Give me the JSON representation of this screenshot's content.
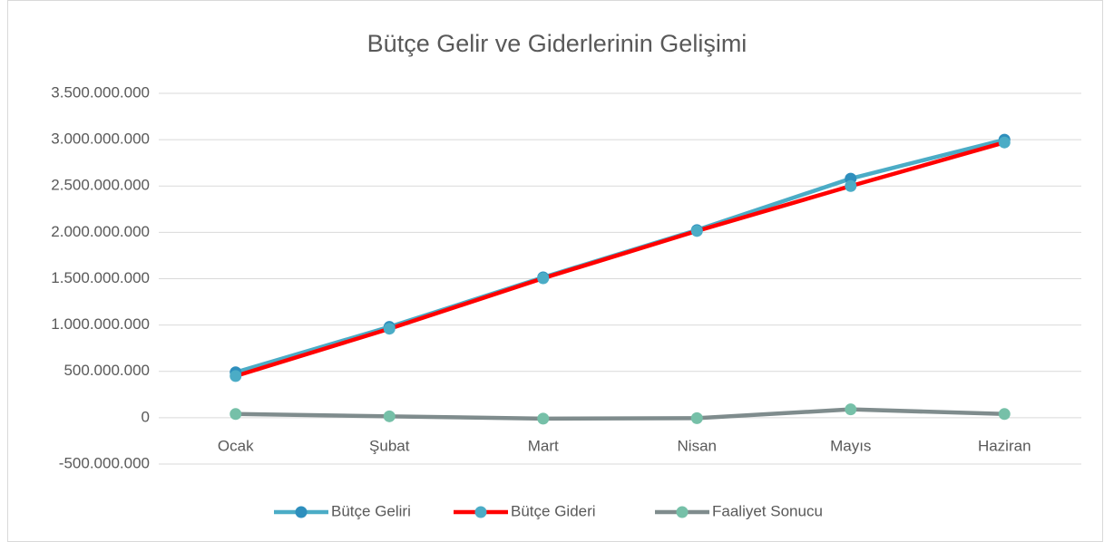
{
  "chart_data": {
    "type": "line",
    "title": "Bütçe Gelir ve Giderlerinin Gelişimi",
    "categories": [
      "Ocak",
      "Şubat",
      "Mart",
      "Nisan",
      "Mayıs",
      "Haziran"
    ],
    "series": [
      {
        "name": "Bütçe Geliri",
        "color": "#4bacc6",
        "marker_color": "#2e8fbd",
        "values": [
          490000000,
          980000000,
          1515000000,
          2025000000,
          2580000000,
          3000000000
        ]
      },
      {
        "name": "Bütçe Gideri",
        "color": "#ff0000",
        "marker_color": "#4bacc6",
        "values": [
          450000000,
          960000000,
          1505000000,
          2015000000,
          2500000000,
          2970000000
        ]
      },
      {
        "name": "Faaliyet Sonucu",
        "color": "#7f8c8d",
        "marker_color": "#76c0a8",
        "values": [
          40000000,
          15000000,
          -10000000,
          -5000000,
          90000000,
          40000000
        ]
      }
    ],
    "ylim": [
      -500000000,
      3500000000
    ],
    "yticks": [
      {
        "value": -500000000,
        "label": "-500.000.000"
      },
      0,
      {
        "value": 500000000,
        "label": "500.000.000"
      },
      {
        "value": 1000000000,
        "label": "1.000.000.000"
      },
      {
        "value": 1500000000,
        "label": "1.500.000.000"
      },
      {
        "value": 2000000000,
        "label": "2.000.000.000"
      },
      {
        "value": 2500000000,
        "label": "2.500.000.000"
      },
      {
        "value": 3000000000,
        "label": "3.000.000.000"
      },
      {
        "value": 3500000000,
        "label": "3.500.000.000"
      }
    ],
    "grid": true,
    "legend": "bottom"
  }
}
